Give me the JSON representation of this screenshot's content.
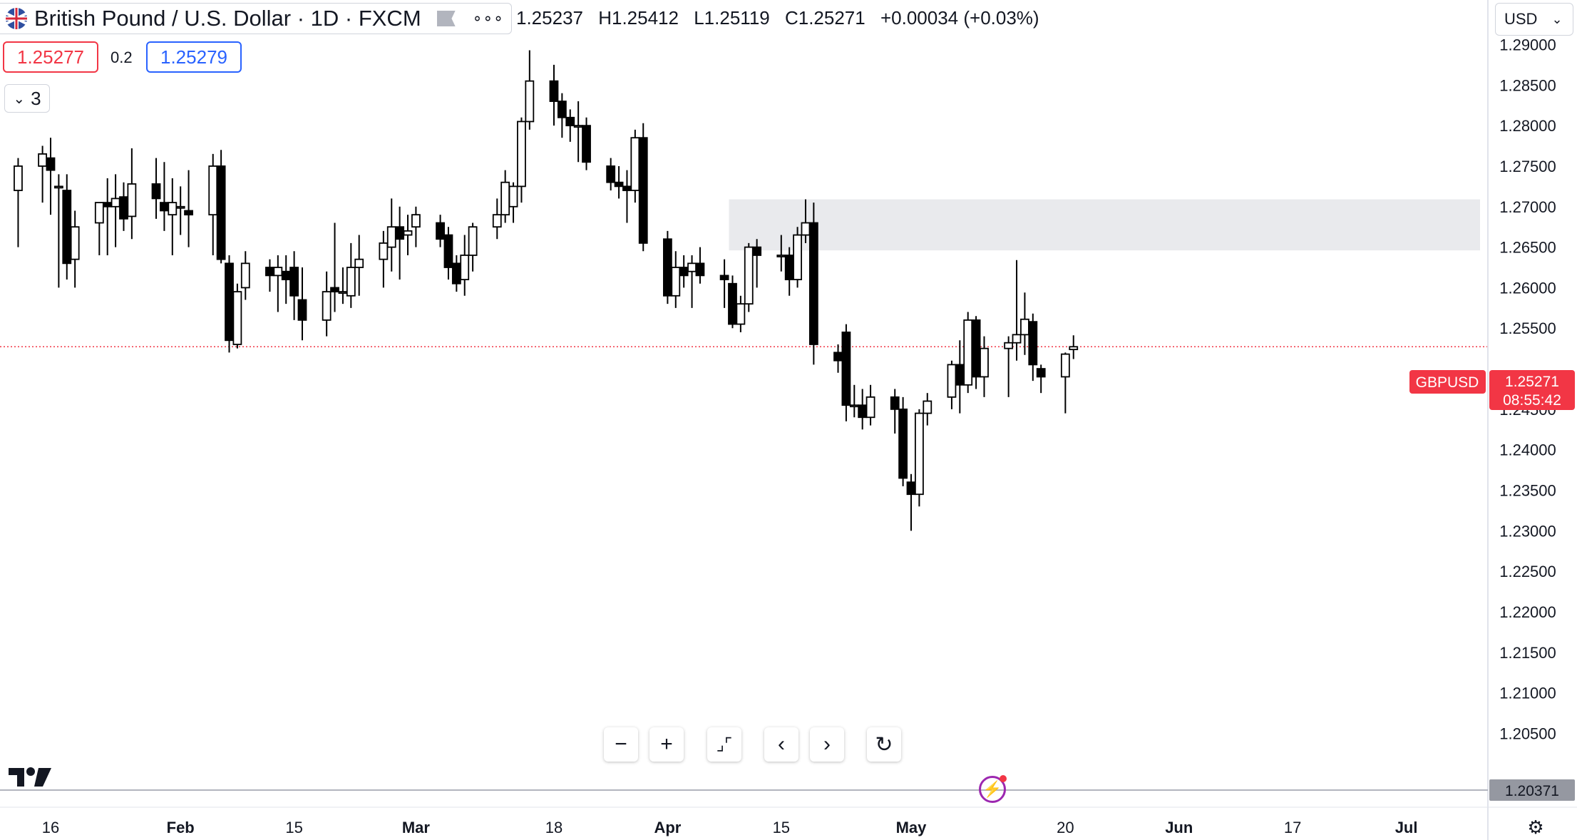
{
  "header": {
    "title": "British Pound / U.S. Dollar · 1D · FXCM",
    "ohlc": {
      "open": "1.25237",
      "high": "H1.25412",
      "low": "L1.25119",
      "close": "C1.25271",
      "change": "+0.00034 (+0.03%)"
    },
    "sell_price": "1.25277",
    "spread": "0.2",
    "buy_price": "1.25279",
    "indicators_count": "3",
    "currency": "USD"
  },
  "price_label": {
    "symbol": "GBPUSD",
    "price": "1.25271",
    "countdown": "08:55:42"
  },
  "crosshair_price": "1.20371",
  "icons": [
    "flag-icon",
    "flag-marker-icon",
    "more-icon",
    "chevron-down-icon",
    "zoom-out-icon",
    "zoom-in-icon",
    "reset-scale-icon",
    "scroll-left-icon",
    "scroll-right-icon",
    "reset-chart-icon",
    "bolt-icon",
    "settings-icon",
    "tradingview-logo"
  ],
  "colors": {
    "up": "#ffffff",
    "down": "#000000",
    "last_price": "#f23645",
    "zone": "#e9eaed",
    "crosshair_badge": "#9598a1"
  },
  "chart_data": {
    "type": "candlestick",
    "symbol": "GBPUSD",
    "interval": "1D",
    "y_axis": {
      "min": 1.198,
      "max": 1.2955,
      "ticks": [
        "1.29000",
        "1.28500",
        "1.28000",
        "1.27500",
        "1.27000",
        "1.26500",
        "1.26000",
        "1.25500",
        "1.24500",
        "1.24000",
        "1.23500",
        "1.23000",
        "1.22500",
        "1.22000",
        "1.21500",
        "1.21000",
        "1.20500"
      ]
    },
    "x_axis": {
      "labels": [
        {
          "label": "16",
          "date": "2024-01-16"
        },
        {
          "label": "Feb",
          "date": "2024-02-01"
        },
        {
          "label": "15",
          "date": "2024-02-15"
        },
        {
          "label": "Mar",
          "date": "2024-03-01"
        },
        {
          "label": "18",
          "date": "2024-03-18"
        },
        {
          "label": "Apr",
          "date": "2024-04-01"
        },
        {
          "label": "15",
          "date": "2024-04-15"
        },
        {
          "label": "May",
          "date": "2024-05-01"
        },
        {
          "label": "20",
          "date": "2024-05-20"
        },
        {
          "label": "Jun",
          "date": "2024-06-03"
        },
        {
          "label": "17",
          "date": "2024-06-17"
        },
        {
          "label": "Jul",
          "date": "2024-07-01"
        }
      ]
    },
    "last_price": 1.25271,
    "zone": {
      "from": "2024-04-09",
      "top": 1.2709,
      "bottom": 1.2646
    },
    "candles": [
      {
        "d": "2024-01-12",
        "o": 1.272,
        "h": 1.276,
        "l": 1.265,
        "c": 1.275
      },
      {
        "d": "2024-01-15",
        "o": 1.275,
        "h": 1.2775,
        "l": 1.2705,
        "c": 1.2765
      },
      {
        "d": "2024-01-16",
        "o": 1.276,
        "h": 1.2785,
        "l": 1.269,
        "c": 1.2745
      },
      {
        "d": "2024-01-17",
        "o": 1.2725,
        "h": 1.274,
        "l": 1.26,
        "c": 1.2725
      },
      {
        "d": "2024-01-18",
        "o": 1.272,
        "h": 1.274,
        "l": 1.261,
        "c": 1.263
      },
      {
        "d": "2024-01-19",
        "o": 1.2635,
        "h": 1.2695,
        "l": 1.26,
        "c": 1.2675
      },
      {
        "d": "2024-01-22",
        "o": 1.268,
        "h": 1.27,
        "l": 1.264,
        "c": 1.2705
      },
      {
        "d": "2024-01-23",
        "o": 1.2705,
        "h": 1.2735,
        "l": 1.264,
        "c": 1.27
      },
      {
        "d": "2024-01-24",
        "o": 1.27,
        "h": 1.274,
        "l": 1.265,
        "c": 1.271
      },
      {
        "d": "2024-01-25",
        "o": 1.2712,
        "h": 1.273,
        "l": 1.267,
        "c": 1.2685
      },
      {
        "d": "2024-01-26",
        "o": 1.2688,
        "h": 1.2772,
        "l": 1.266,
        "c": 1.2728
      },
      {
        "d": "2024-01-29",
        "o": 1.2728,
        "h": 1.276,
        "l": 1.2685,
        "c": 1.271
      },
      {
        "d": "2024-01-30",
        "o": 1.2705,
        "h": 1.2755,
        "l": 1.267,
        "c": 1.2695
      },
      {
        "d": "2024-01-31",
        "o": 1.269,
        "h": 1.2735,
        "l": 1.264,
        "c": 1.2705
      },
      {
        "d": "2024-02-01",
        "o": 1.27,
        "h": 1.2725,
        "l": 1.2665,
        "c": 1.27
      },
      {
        "d": "2024-02-02",
        "o": 1.2695,
        "h": 1.2745,
        "l": 1.265,
        "c": 1.269
      },
      {
        "d": "2024-02-05",
        "o": 1.269,
        "h": 1.2765,
        "l": 1.264,
        "c": 1.275
      },
      {
        "d": "2024-02-06",
        "o": 1.275,
        "h": 1.277,
        "l": 1.263,
        "c": 1.2635
      },
      {
        "d": "2024-02-07",
        "o": 1.263,
        "h": 1.264,
        "l": 1.252,
        "c": 1.2535
      },
      {
        "d": "2024-02-08",
        "o": 1.253,
        "h": 1.2605,
        "l": 1.2525,
        "c": 1.2595
      },
      {
        "d": "2024-02-09",
        "o": 1.26,
        "h": 1.2645,
        "l": 1.2585,
        "c": 1.263
      },
      {
        "d": "2024-02-12",
        "o": 1.2625,
        "h": 1.2635,
        "l": 1.2595,
        "c": 1.2615
      },
      {
        "d": "2024-02-13",
        "o": 1.2615,
        "h": 1.264,
        "l": 1.257,
        "c": 1.2625
      },
      {
        "d": "2024-02-14",
        "o": 1.262,
        "h": 1.264,
        "l": 1.258,
        "c": 1.261
      },
      {
        "d": "2024-02-15",
        "o": 1.2625,
        "h": 1.2645,
        "l": 1.256,
        "c": 1.259
      },
      {
        "d": "2024-02-16",
        "o": 1.2585,
        "h": 1.2625,
        "l": 1.2535,
        "c": 1.256
      },
      {
        "d": "2024-02-19",
        "o": 1.256,
        "h": 1.262,
        "l": 1.254,
        "c": 1.2595
      },
      {
        "d": "2024-02-20",
        "o": 1.26,
        "h": 1.268,
        "l": 1.257,
        "c": 1.2595
      },
      {
        "d": "2024-02-21",
        "o": 1.2595,
        "h": 1.2625,
        "l": 1.258,
        "c": 1.2595
      },
      {
        "d": "2024-02-22",
        "o": 1.259,
        "h": 1.2655,
        "l": 1.2575,
        "c": 1.2625
      },
      {
        "d": "2024-02-23",
        "o": 1.2625,
        "h": 1.2665,
        "l": 1.259,
        "c": 1.2635
      },
      {
        "d": "2024-02-26",
        "o": 1.2635,
        "h": 1.267,
        "l": 1.26,
        "c": 1.2655
      },
      {
        "d": "2024-02-27",
        "o": 1.265,
        "h": 1.271,
        "l": 1.262,
        "c": 1.2675
      },
      {
        "d": "2024-02-28",
        "o": 1.2675,
        "h": 1.27,
        "l": 1.261,
        "c": 1.266
      },
      {
        "d": "2024-02-29",
        "o": 1.2665,
        "h": 1.269,
        "l": 1.264,
        "c": 1.267
      },
      {
        "d": "2024-03-01",
        "o": 1.2675,
        "h": 1.27,
        "l": 1.265,
        "c": 1.269
      },
      {
        "d": "2024-03-04",
        "o": 1.268,
        "h": 1.269,
        "l": 1.265,
        "c": 1.266
      },
      {
        "d": "2024-03-05",
        "o": 1.2665,
        "h": 1.2675,
        "l": 1.261,
        "c": 1.2625
      },
      {
        "d": "2024-03-06",
        "o": 1.263,
        "h": 1.264,
        "l": 1.2595,
        "c": 1.2605
      },
      {
        "d": "2024-03-07",
        "o": 1.261,
        "h": 1.2665,
        "l": 1.259,
        "c": 1.264
      },
      {
        "d": "2024-03-08",
        "o": 1.264,
        "h": 1.268,
        "l": 1.262,
        "c": 1.2675
      },
      {
        "d": "2024-03-11",
        "o": 1.2675,
        "h": 1.271,
        "l": 1.266,
        "c": 1.269
      },
      {
        "d": "2024-03-12",
        "o": 1.269,
        "h": 1.2745,
        "l": 1.268,
        "c": 1.273
      },
      {
        "d": "2024-03-13",
        "o": 1.27,
        "h": 1.273,
        "l": 1.268,
        "c": 1.2725
      },
      {
        "d": "2024-03-14",
        "o": 1.2725,
        "h": 1.281,
        "l": 1.2705,
        "c": 1.2805
      },
      {
        "d": "2024-03-15",
        "o": 1.2805,
        "h": 1.2893,
        "l": 1.2795,
        "c": 1.2855
      },
      {
        "d": "2024-03-18",
        "o": 1.2855,
        "h": 1.2875,
        "l": 1.28,
        "c": 1.283
      },
      {
        "d": "2024-03-19",
        "o": 1.283,
        "h": 1.284,
        "l": 1.2785,
        "c": 1.281
      },
      {
        "d": "2024-03-20",
        "o": 1.281,
        "h": 1.282,
        "l": 1.278,
        "c": 1.28
      },
      {
        "d": "2024-03-21",
        "o": 1.28,
        "h": 1.283,
        "l": 1.2755,
        "c": 1.28
      },
      {
        "d": "2024-03-22",
        "o": 1.28,
        "h": 1.281,
        "l": 1.2745,
        "c": 1.2755
      },
      {
        "d": "2024-03-25",
        "o": 1.275,
        "h": 1.276,
        "l": 1.272,
        "c": 1.273
      },
      {
        "d": "2024-03-26",
        "o": 1.273,
        "h": 1.275,
        "l": 1.271,
        "c": 1.2725
      },
      {
        "d": "2024-03-27",
        "o": 1.2725,
        "h": 1.2745,
        "l": 1.268,
        "c": 1.272
      },
      {
        "d": "2024-03-28",
        "o": 1.272,
        "h": 1.2795,
        "l": 1.2705,
        "c": 1.2785
      },
      {
        "d": "2024-03-29",
        "o": 1.2785,
        "h": 1.2803,
        "l": 1.2645,
        "c": 1.2655
      },
      {
        "d": "2024-04-01",
        "o": 1.266,
        "h": 1.267,
        "l": 1.258,
        "c": 1.259
      },
      {
        "d": "2024-04-02",
        "o": 1.259,
        "h": 1.2645,
        "l": 1.2575,
        "c": 1.2625
      },
      {
        "d": "2024-04-03",
        "o": 1.2625,
        "h": 1.264,
        "l": 1.26,
        "c": 1.2615
      },
      {
        "d": "2024-04-04",
        "o": 1.262,
        "h": 1.264,
        "l": 1.2575,
        "c": 1.263
      },
      {
        "d": "2024-04-05",
        "o": 1.263,
        "h": 1.265,
        "l": 1.2605,
        "c": 1.2615
      },
      {
        "d": "2024-04-08",
        "o": 1.2615,
        "h": 1.2635,
        "l": 1.2575,
        "c": 1.261
      },
      {
        "d": "2024-04-09",
        "o": 1.2605,
        "h": 1.2615,
        "l": 1.255,
        "c": 1.2555
      },
      {
        "d": "2024-04-10",
        "o": 1.2555,
        "h": 1.259,
        "l": 1.2545,
        "c": 1.258
      },
      {
        "d": "2024-04-11",
        "o": 1.258,
        "h": 1.2655,
        "l": 1.257,
        "c": 1.265
      },
      {
        "d": "2024-04-12",
        "o": 1.265,
        "h": 1.266,
        "l": 1.26,
        "c": 1.264
      },
      {
        "d": "2024-04-15",
        "o": 1.264,
        "h": 1.2665,
        "l": 1.262,
        "c": 1.264
      },
      {
        "d": "2024-04-16",
        "o": 1.264,
        "h": 1.265,
        "l": 1.259,
        "c": 1.261
      },
      {
        "d": "2024-04-17",
        "o": 1.261,
        "h": 1.2675,
        "l": 1.26,
        "c": 1.2665
      },
      {
        "d": "2024-04-18",
        "o": 1.2665,
        "h": 1.2709,
        "l": 1.2655,
        "c": 1.268
      },
      {
        "d": "2024-04-19",
        "o": 1.268,
        "h": 1.2705,
        "l": 1.2505,
        "c": 1.253
      },
      {
        "d": "2024-04-22",
        "o": 1.252,
        "h": 1.253,
        "l": 1.2495,
        "c": 1.251
      },
      {
        "d": "2024-04-23",
        "o": 1.2545,
        "h": 1.2555,
        "l": 1.2435,
        "c": 1.2455
      },
      {
        "d": "2024-04-24",
        "o": 1.2455,
        "h": 1.248,
        "l": 1.244,
        "c": 1.2455
      },
      {
        "d": "2024-04-25",
        "o": 1.2455,
        "h": 1.2475,
        "l": 1.2425,
        "c": 1.244
      },
      {
        "d": "2024-04-26",
        "o": 1.244,
        "h": 1.248,
        "l": 1.243,
        "c": 1.2465
      },
      {
        "d": "2024-04-29",
        "o": 1.2465,
        "h": 1.2475,
        "l": 1.242,
        "c": 1.245
      },
      {
        "d": "2024-04-30",
        "o": 1.245,
        "h": 1.2465,
        "l": 1.2355,
        "c": 1.2365
      },
      {
        "d": "2024-05-01",
        "o": 1.236,
        "h": 1.237,
        "l": 1.23,
        "c": 1.2345
      },
      {
        "d": "2024-05-02",
        "o": 1.2345,
        "h": 1.245,
        "l": 1.233,
        "c": 1.2445
      },
      {
        "d": "2024-05-03",
        "o": 1.2445,
        "h": 1.247,
        "l": 1.243,
        "c": 1.246
      },
      {
        "d": "2024-05-06",
        "o": 1.2465,
        "h": 1.251,
        "l": 1.245,
        "c": 1.2505
      },
      {
        "d": "2024-05-07",
        "o": 1.2505,
        "h": 1.2535,
        "l": 1.2445,
        "c": 1.248
      },
      {
        "d": "2024-05-08",
        "o": 1.248,
        "h": 1.257,
        "l": 1.247,
        "c": 1.256
      },
      {
        "d": "2024-05-09",
        "o": 1.256,
        "h": 1.2565,
        "l": 1.2475,
        "c": 1.249
      },
      {
        "d": "2024-05-10",
        "o": 1.249,
        "h": 1.254,
        "l": 1.2465,
        "c": 1.2525
      },
      {
        "d": "2024-05-13",
        "o": 1.2525,
        "h": 1.254,
        "l": 1.2465,
        "c": 1.2532
      },
      {
        "d": "2024-05-14",
        "o": 1.2532,
        "h": 1.2634,
        "l": 1.251,
        "c": 1.2542
      },
      {
        "d": "2024-05-15",
        "o": 1.2542,
        "h": 1.2594,
        "l": 1.2517,
        "c": 1.2561
      },
      {
        "d": "2024-05-16",
        "o": 1.2558,
        "h": 1.2568,
        "l": 1.2485,
        "c": 1.2505
      },
      {
        "d": "2024-05-17",
        "o": 1.25,
        "h": 1.2505,
        "l": 1.247,
        "c": 1.249
      },
      {
        "d": "2024-05-20",
        "o": 1.249,
        "h": 1.252,
        "l": 1.2445,
        "c": 1.2518
      },
      {
        "d": "2024-05-21",
        "o": 1.25237,
        "h": 1.25412,
        "l": 1.25119,
        "c": 1.25271
      }
    ]
  }
}
